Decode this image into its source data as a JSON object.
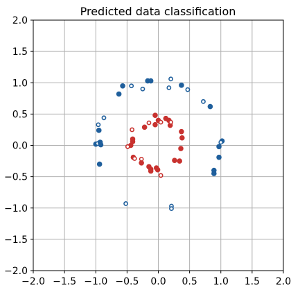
{
  "chart_data": {
    "type": "scatter",
    "title": "Predicted data classification",
    "xlabel": "",
    "ylabel": "",
    "xlim": [
      -2.0,
      2.0
    ],
    "ylim": [
      -2.0,
      2.0
    ],
    "x_ticks": [
      -2.0,
      -1.5,
      -1.0,
      -0.5,
      0.0,
      0.5,
      1.0,
      1.5,
      2.0
    ],
    "y_ticks": [
      -2.0,
      -1.5,
      -1.0,
      -0.5,
      0.0,
      0.5,
      1.0,
      1.5,
      2.0
    ],
    "x_tick_labels": [
      "−2.0",
      "−1.5",
      "−1.0",
      "−0.5",
      "0.0",
      "0.5",
      "1.0",
      "1.5",
      "2.0"
    ],
    "y_tick_labels": [
      "−2.0",
      "−1.5",
      "−1.0",
      "−0.5",
      "0.0",
      "0.5",
      "1.0",
      "1.5",
      "2.0"
    ],
    "grid": true,
    "legend": "none",
    "series": [
      {
        "color": "#1f5f9c",
        "points": [
          {
            "x": -0.17,
            "y": 1.03,
            "marker": "filled"
          },
          {
            "x": -0.12,
            "y": 1.03,
            "marker": "filled"
          },
          {
            "x": 0.2,
            "y": 1.06,
            "marker": "hollow"
          },
          {
            "x": -0.25,
            "y": 0.9,
            "marker": "hollow"
          },
          {
            "x": -0.43,
            "y": 0.95,
            "marker": "hollow"
          },
          {
            "x": -0.57,
            "y": 0.95,
            "marker": "filled"
          },
          {
            "x": -0.63,
            "y": 0.82,
            "marker": "filled"
          },
          {
            "x": 0.17,
            "y": 0.92,
            "marker": "hollow"
          },
          {
            "x": 0.37,
            "y": 0.96,
            "marker": "filled"
          },
          {
            "x": 0.47,
            "y": 0.89,
            "marker": "hollow"
          },
          {
            "x": 0.72,
            "y": 0.7,
            "marker": "hollow"
          },
          {
            "x": 0.83,
            "y": 0.62,
            "marker": "filled"
          },
          {
            "x": -0.87,
            "y": 0.44,
            "marker": "hollow"
          },
          {
            "x": -0.96,
            "y": 0.33,
            "marker": "hollow"
          },
          {
            "x": -0.95,
            "y": 0.24,
            "marker": "filled"
          },
          {
            "x": -1.0,
            "y": 0.02,
            "marker": "filled"
          },
          {
            "x": -0.97,
            "y": 0.03,
            "marker": "hollow"
          },
          {
            "x": -0.93,
            "y": 0.05,
            "marker": "filled"
          },
          {
            "x": -0.92,
            "y": 0.01,
            "marker": "filled"
          },
          {
            "x": -0.94,
            "y": -0.3,
            "marker": "filled"
          },
          {
            "x": 1.02,
            "y": 0.07,
            "marker": "filled"
          },
          {
            "x": 1.0,
            "y": 0.05,
            "marker": "hollow"
          },
          {
            "x": 0.97,
            "y": -0.02,
            "marker": "filled"
          },
          {
            "x": 0.97,
            "y": -0.19,
            "marker": "filled"
          },
          {
            "x": 0.89,
            "y": -0.4,
            "marker": "filled"
          },
          {
            "x": 0.89,
            "y": -0.45,
            "marker": "filled"
          },
          {
            "x": -0.52,
            "y": -0.93,
            "marker": "hollow"
          },
          {
            "x": 0.21,
            "y": -0.97,
            "marker": "hollow"
          },
          {
            "x": 0.21,
            "y": -1.01,
            "marker": "hollow"
          }
        ]
      },
      {
        "color": "#c8322f",
        "points": [
          {
            "x": -0.05,
            "y": 0.48,
            "marker": "filled"
          },
          {
            "x": 0.0,
            "y": 0.4,
            "marker": "filled"
          },
          {
            "x": 0.04,
            "y": 0.37,
            "marker": "hollow"
          },
          {
            "x": -0.15,
            "y": 0.36,
            "marker": "hollow"
          },
          {
            "x": -0.22,
            "y": 0.29,
            "marker": "filled"
          },
          {
            "x": -0.05,
            "y": 0.33,
            "marker": "filled"
          },
          {
            "x": 0.12,
            "y": 0.43,
            "marker": "filled"
          },
          {
            "x": 0.17,
            "y": 0.4,
            "marker": "filled"
          },
          {
            "x": 0.19,
            "y": 0.32,
            "marker": "filled"
          },
          {
            "x": 0.2,
            "y": 0.37,
            "marker": "hollow"
          },
          {
            "x": -0.42,
            "y": 0.25,
            "marker": "hollow"
          },
          {
            "x": 0.37,
            "y": 0.22,
            "marker": "filled"
          },
          {
            "x": 0.38,
            "y": 0.12,
            "marker": "filled"
          },
          {
            "x": -0.41,
            "y": 0.1,
            "marker": "filled"
          },
          {
            "x": -0.41,
            "y": 0.06,
            "marker": "filled"
          },
          {
            "x": -0.44,
            "y": 0.0,
            "marker": "filled"
          },
          {
            "x": -0.49,
            "y": -0.02,
            "marker": "hollow"
          },
          {
            "x": 0.36,
            "y": -0.05,
            "marker": "filled"
          },
          {
            "x": -0.4,
            "y": -0.19,
            "marker": "filled"
          },
          {
            "x": -0.38,
            "y": -0.21,
            "marker": "hollow"
          },
          {
            "x": -0.27,
            "y": -0.22,
            "marker": "hollow"
          },
          {
            "x": -0.27,
            "y": -0.28,
            "marker": "filled"
          },
          {
            "x": 0.26,
            "y": -0.24,
            "marker": "filled"
          },
          {
            "x": 0.34,
            "y": -0.25,
            "marker": "filled"
          },
          {
            "x": -0.15,
            "y": -0.34,
            "marker": "filled"
          },
          {
            "x": -0.12,
            "y": -0.38,
            "marker": "filled"
          },
          {
            "x": -0.12,
            "y": -0.41,
            "marker": "filled"
          },
          {
            "x": -0.03,
            "y": -0.36,
            "marker": "filled"
          },
          {
            "x": -0.01,
            "y": -0.39,
            "marker": "filled"
          },
          {
            "x": 0.04,
            "y": -0.48,
            "marker": "hollow"
          }
        ]
      }
    ]
  }
}
